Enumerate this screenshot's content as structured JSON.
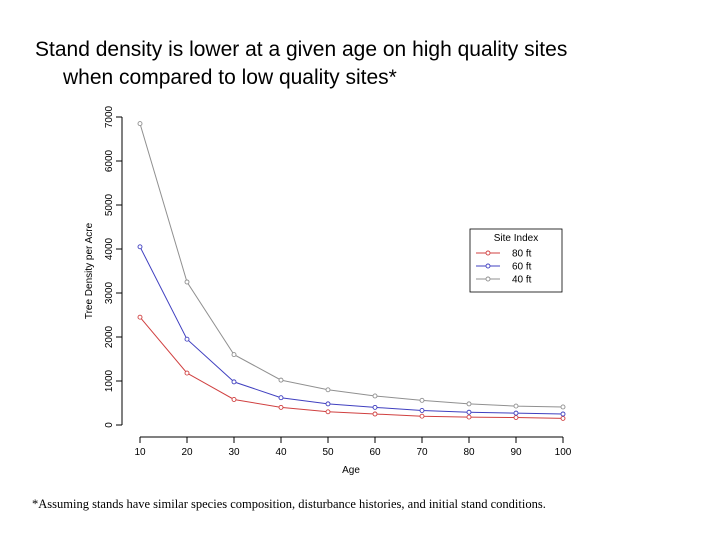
{
  "slide": {
    "title_line1": "Stand density is lower at a given age on high quality sites",
    "title_line2": "when compared to low quality sites*",
    "footnote": "*Assuming stands have similar species composition, disturbance histories, and initial stand conditions."
  },
  "chart_data": {
    "type": "line",
    "title": "",
    "xlabel": "Age",
    "ylabel": "Tree Density per Acre",
    "x": [
      10,
      20,
      30,
      40,
      50,
      60,
      70,
      80,
      90,
      100
    ],
    "xticks": [
      "10",
      "20",
      "30",
      "40",
      "50",
      "60",
      "70",
      "80",
      "90",
      "100"
    ],
    "yticks": [
      0,
      1000,
      2000,
      3000,
      4000,
      5000,
      6000,
      7000
    ],
    "ylim": [
      0,
      7000
    ],
    "legend": {
      "title": "Site Index",
      "position": "right"
    },
    "series": [
      {
        "name": "80 ft",
        "color": "#d04040",
        "values": [
          2450,
          1180,
          580,
          400,
          300,
          250,
          200,
          180,
          170,
          150
        ]
      },
      {
        "name": "60 ft",
        "color": "#4040c0",
        "values": [
          4050,
          1950,
          980,
          620,
          480,
          400,
          330,
          290,
          270,
          250
        ]
      },
      {
        "name": "40 ft",
        "color": "#909090",
        "values": [
          6850,
          3250,
          1600,
          1020,
          800,
          660,
          560,
          480,
          430,
          410
        ]
      }
    ]
  }
}
